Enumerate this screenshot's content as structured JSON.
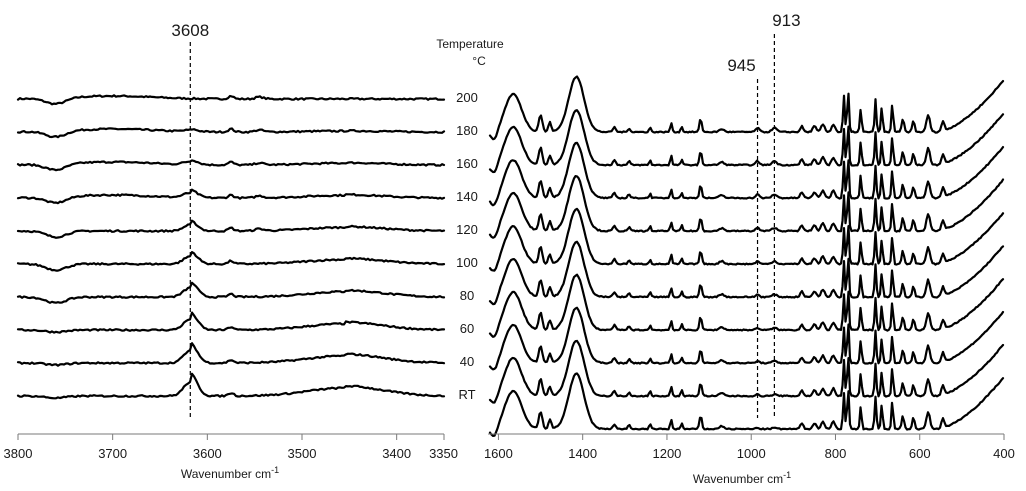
{
  "chart_data": [
    {
      "type": "line",
      "title": "",
      "xlabel": "Wavenumber cm",
      "xlabel_sup": "-1",
      "ylabel": "",
      "xlim": [
        3800,
        3350
      ],
      "x_ticks": [
        3800,
        3700,
        3600,
        3500,
        3400,
        3350
      ],
      "peak_markers": [
        {
          "x": 3618,
          "label": "3608"
        }
      ],
      "series": [
        {
          "name": "200"
        },
        {
          "name": "180"
        },
        {
          "name": "160"
        },
        {
          "name": "140"
        },
        {
          "name": "120"
        },
        {
          "name": "100"
        },
        {
          "name": "80"
        },
        {
          "name": "60"
        },
        {
          "name": "40"
        },
        {
          "name": "RT"
        }
      ],
      "grid": false
    },
    {
      "type": "line",
      "title": "",
      "xlabel": "Wavenumber cm",
      "xlabel_sup": "-1",
      "ylabel": "",
      "xlim": [
        1620,
        400
      ],
      "x_ticks": [
        1600,
        1400,
        1200,
        1000,
        800,
        600,
        400
      ],
      "peak_markers": [
        {
          "x": 985,
          "label": "945"
        },
        {
          "x": 945,
          "label": "913"
        }
      ],
      "series": [
        {
          "name": "200"
        },
        {
          "name": "180"
        },
        {
          "name": "160"
        },
        {
          "name": "140"
        },
        {
          "name": "120"
        },
        {
          "name": "100"
        },
        {
          "name": "80"
        },
        {
          "name": "60"
        },
        {
          "name": "40"
        },
        {
          "name": "RT"
        }
      ],
      "grid": false
    }
  ],
  "legend": {
    "title_line1": "Temperature",
    "title_line2": "°C",
    "labels": [
      "200",
      "180",
      "160",
      "140",
      "120",
      "100",
      "80",
      "60",
      "40",
      "RT"
    ]
  }
}
